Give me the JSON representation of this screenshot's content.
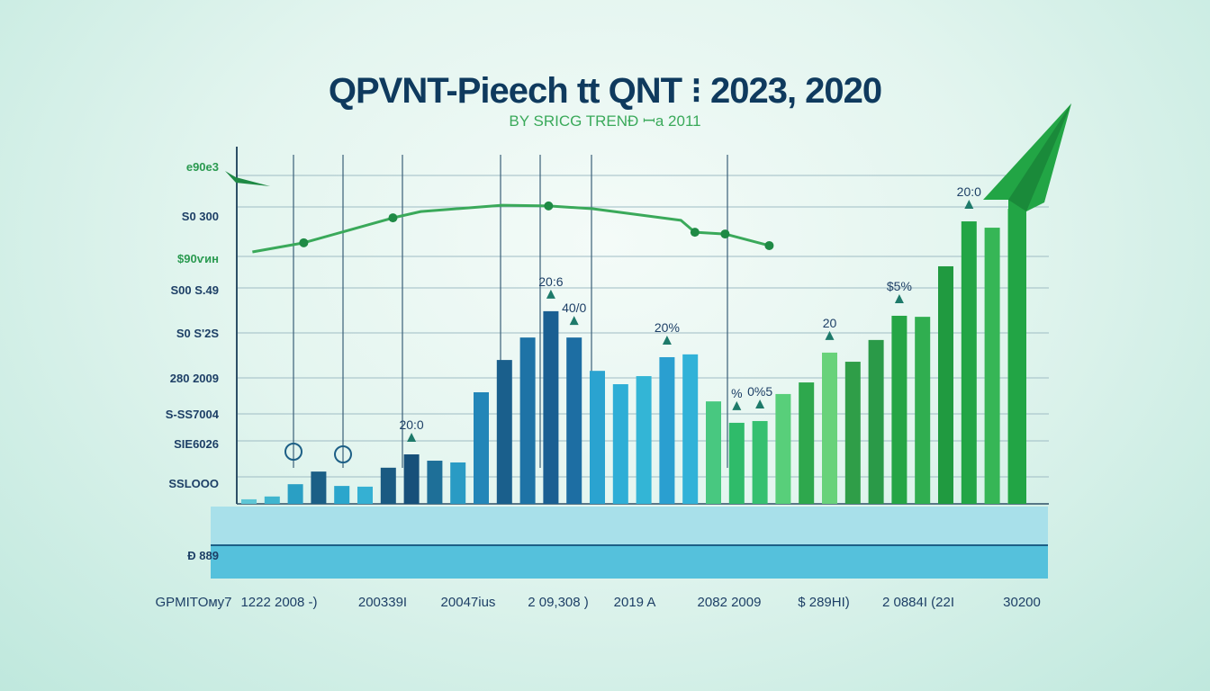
{
  "chart_data": {
    "type": "bar",
    "title": "QPVNT-Pieech tt QNT ⁝ 2023, 2020",
    "subtitle": "BY SRICG TRENÐ ꟷa 2011",
    "y_tick_labels": [
      "e90e3",
      "S0 300",
      "$90ѵин",
      "S00 S.49",
      "S0 S'2S",
      "280 2009",
      "S-SS7004",
      "SIE6026",
      "SSLOOO",
      "Ð 889"
    ],
    "x_tick_labels": [
      "GPMITOмy7",
      "1222 2008 -)",
      "200339I",
      "20047ius",
      "2 09,308 )",
      "2019 A",
      "2082 2009",
      "$ 289HI)",
      "2 0884I (22I",
      "30200"
    ],
    "ylim": [
      0,
      100
    ],
    "grid": true,
    "values": [
      1.3,
      2.1,
      5.6,
      9.2,
      5.1,
      4.9,
      10.3,
      14.1,
      12.3,
      11.8,
      31.8,
      41.0,
      47.4,
      54.9,
      47.4,
      37.9,
      34.1,
      36.4,
      41.8,
      42.6,
      29.2,
      23.1,
      23.6,
      31.3,
      34.6,
      43.1,
      40.5,
      46.7,
      53.6,
      53.3,
      67.7,
      80.5,
      78.7,
      84.1
    ],
    "colors": [
      "#5ec7d6",
      "#3fb5cf",
      "#2a9fc4",
      "#1b5f86",
      "#2ba6cc",
      "#35b0d3",
      "#1a5a82",
      "#17507a",
      "#1e6f98",
      "#2a9bc4",
      "#2386b8",
      "#1a5f8c",
      "#1e73a6",
      "#1a5f92",
      "#1d6ea3",
      "#2aa3d0",
      "#2eaed6",
      "#33b5d6",
      "#2a9fd0",
      "#31b2d8",
      "#48c880",
      "#2fbb6a",
      "#35c070",
      "#58cf7a",
      "#2ea84d",
      "#68d27a",
      "#2f9e48",
      "#2a9a48",
      "#25a545",
      "#30ae50",
      "#209a40",
      "#22a545",
      "#36b656",
      "#52c36a"
    ],
    "annotations": [
      {
        "bar": 7,
        "text": "20:0"
      },
      {
        "bar": 13,
        "text": "20:6"
      },
      {
        "bar": 14,
        "text": "40/0"
      },
      {
        "bar": 18,
        "text": "20%"
      },
      {
        "bar": 21,
        "text": "%"
      },
      {
        "bar": 22,
        "text": "0%5"
      },
      {
        "bar": 25,
        "text": "20"
      },
      {
        "bar": 28,
        "text": "$5%"
      },
      {
        "bar": 31,
        "text": "20:0"
      }
    ],
    "line_series": {
      "color": "#3aa95a",
      "points": [
        [
          0.15,
          71.8
        ],
        [
          2.36,
          74.4
        ],
        [
          6.2,
          81.5
        ],
        [
          7.4,
          83.3
        ],
        [
          10.9,
          85.1
        ],
        [
          12.9,
          84.9
        ],
        [
          14.8,
          84.1
        ],
        [
          18.6,
          80.8
        ],
        [
          19.2,
          77.4
        ],
        [
          20.5,
          76.9
        ],
        [
          22.4,
          73.6
        ]
      ],
      "markers": [
        2.36,
        6.2,
        12.9,
        19.2,
        20.5,
        22.4
      ]
    },
    "trend_arrow": "up-right",
    "accent_colors": {
      "title": "#0f3a5e",
      "green": "#22a545",
      "blue": "#1a5f8c"
    }
  }
}
